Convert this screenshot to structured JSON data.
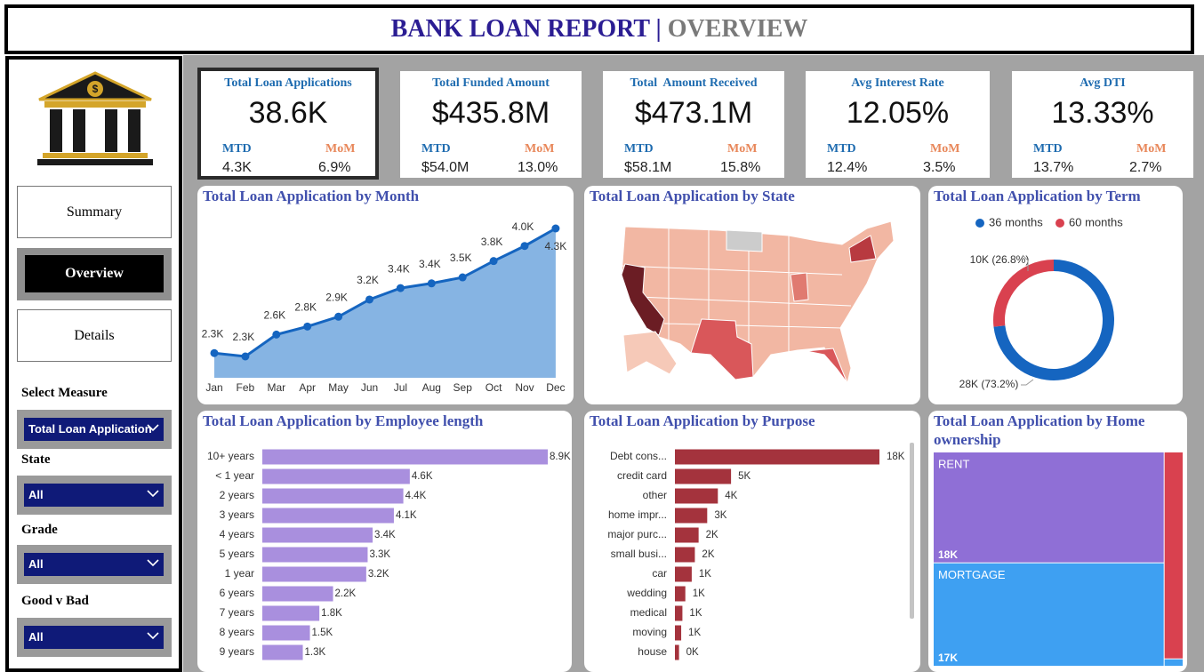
{
  "header": {
    "title": "BANK LOAN REPORT |",
    "subtitle": "OVERVIEW"
  },
  "sidebar": {
    "nav": [
      "Summary",
      "Overview",
      "Details"
    ],
    "filters": [
      {
        "label": "Select Measure",
        "value": "Total Loan Application"
      },
      {
        "label": "State",
        "value": "All"
      },
      {
        "label": "Grade",
        "value": "All"
      },
      {
        "label": "Good v Bad",
        "value": "All"
      }
    ]
  },
  "kpis": [
    {
      "title": "Total Loan Applications",
      "value": "38.6K",
      "mtd_label": "MTD",
      "mom_label": "MoM",
      "mtd": "4.3K",
      "mom": "6.9%"
    },
    {
      "title": "Total Funded Amount",
      "value": "$435.8M",
      "mtd_label": "MTD",
      "mom_label": "MoM",
      "mtd": "$54.0M",
      "mom": "13.0%"
    },
    {
      "title": "Total  Amount Received",
      "value": "$473.1M",
      "mtd_label": "MTD",
      "mom_label": "MoM",
      "mtd": "$58.1M",
      "mom": "15.8%"
    },
    {
      "title": "Avg Interest Rate",
      "value": "12.05%",
      "mtd_label": "MTD",
      "mom_label": "MoM",
      "mtd": "12.4%",
      "mom": "3.5%"
    },
    {
      "title": "Avg DTI",
      "value": "13.33%",
      "mtd_label": "MTD",
      "mom_label": "MoM",
      "mtd": "13.7%",
      "mom": "2.7%"
    }
  ],
  "chart_data": [
    {
      "type": "area",
      "title": "Total Loan Application by Month",
      "categories": [
        "Jan",
        "Feb",
        "Mar",
        "Apr",
        "May",
        "Jun",
        "Jul",
        "Aug",
        "Sep",
        "Oct",
        "Nov",
        "Dec"
      ],
      "values": [
        2332,
        2279,
        2627,
        2755,
        2911,
        3184,
        3366,
        3441,
        3536,
        3796,
        4035,
        4314
      ],
      "value_labels": [
        "2.3K",
        "2.3K",
        "2.6K",
        "2.8K",
        "2.9K",
        "3.2K",
        "3.4K",
        "3.4K",
        "3.5K",
        "3.8K",
        "4.0K",
        "4.3K"
      ],
      "color": "#86b4e3",
      "line_color": "#1565c0"
    },
    {
      "type": "map",
      "title": "Total Loan Application by State"
    },
    {
      "type": "donut",
      "title": "Total Loan Application by Term",
      "categories": [
        "36 months",
        "60 months"
      ],
      "values": [
        28237,
        10339
      ],
      "value_labels": [
        "28K (73.2%)",
        "10K (26.8%)"
      ],
      "colors": [
        "#1565c0",
        "#d9414f"
      ]
    },
    {
      "type": "hbar",
      "title": "Total Loan Application by Employee length",
      "categories": [
        "10+ years",
        "< 1 year",
        "2 years",
        "3 years",
        "4 years",
        "5 years",
        "1 year",
        "6 years",
        "7 years",
        "8 years",
        "9 years"
      ],
      "values": [
        8870,
        4583,
        4382,
        4088,
        3428,
        3273,
        3229,
        2198,
        1772,
        1479,
        1258
      ],
      "value_labels": [
        "8.9K",
        "4.6K",
        "4.4K",
        "4.1K",
        "3.4K",
        "3.3K",
        "3.2K",
        "2.2K",
        "1.8K",
        "1.5K",
        "1.3K"
      ],
      "color": "#a98fde"
    },
    {
      "type": "hbar",
      "title": "Total Loan Application by Purpose",
      "categories": [
        "Debt cons...",
        "credit card",
        "other",
        "home impr...",
        "major purc...",
        "small busi...",
        "car",
        "wedding",
        "medical",
        "moving",
        "house"
      ],
      "values": [
        18214,
        4998,
        3824,
        2876,
        2110,
        1776,
        1497,
        928,
        667,
        559,
        366
      ],
      "value_labels": [
        "18K",
        "5K",
        "4K",
        "3K",
        "2K",
        "2K",
        "1K",
        "1K",
        "1K",
        "1K",
        "0K"
      ],
      "color": "#a4333d"
    },
    {
      "type": "treemap",
      "title": "Total Loan Application by Home ownership",
      "categories": [
        "RENT",
        "MORTGAGE",
        null,
        null
      ],
      "values": [
        18439,
        17198,
        2838,
        101
      ],
      "value_labels": [
        "18K",
        "17K",
        null,
        null
      ],
      "colors": [
        "#8f6fd6",
        "#3ea0f2",
        "#d9414f",
        "#3ea0f2"
      ]
    }
  ]
}
